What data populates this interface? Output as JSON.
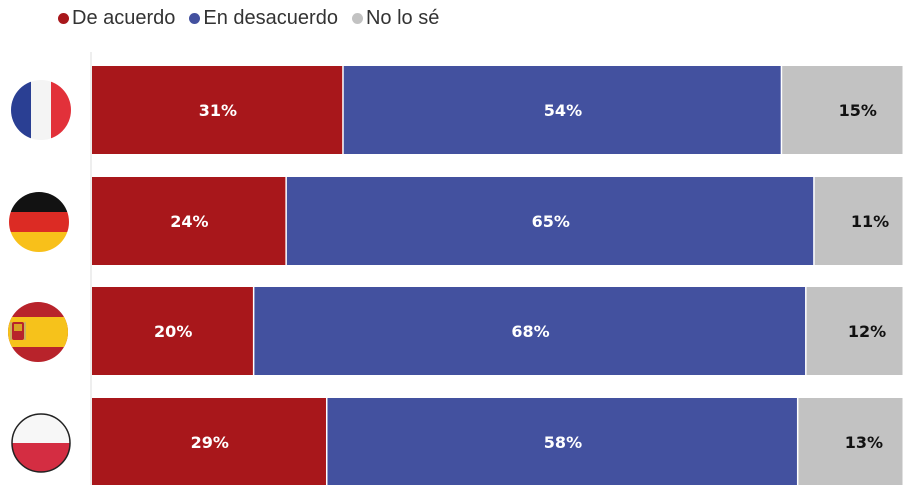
{
  "legend": [
    {
      "label": "De acuerdo",
      "color": "#a8171b"
    },
    {
      "label": "En desacuerdo",
      "color": "#43519f"
    },
    {
      "label": "No lo sé",
      "color": "#c2c2c2"
    }
  ],
  "chart_data": {
    "type": "bar",
    "orientation": "horizontal",
    "stacked": true,
    "categories": [
      "France",
      "Germany",
      "Spain",
      "Poland"
    ],
    "category_icons": [
      "france-flag-icon",
      "germany-flag-icon",
      "spain-flag-icon",
      "poland-flag-icon"
    ],
    "series": [
      {
        "name": "De acuerdo",
        "color": "#a8171b",
        "values": [
          31,
          24,
          20,
          29
        ],
        "labels": [
          "31%",
          "24%",
          "20%",
          "29%"
        ]
      },
      {
        "name": "En desacuerdo",
        "color": "#43519f",
        "values": [
          54,
          65,
          68,
          58
        ],
        "labels": [
          "54%",
          "65%",
          "68%",
          "58%"
        ]
      },
      {
        "name": "No lo sé",
        "color": "#c2c2c2",
        "values": [
          15,
          11,
          12,
          13
        ],
        "labels": [
          "15%",
          "11%",
          "12%",
          "13%"
        ]
      }
    ],
    "xlim": [
      0,
      100
    ],
    "label_colors": [
      "#ffffff",
      "#ffffff",
      "#111111"
    ],
    "legend_position": "top-left",
    "grid": false
  }
}
